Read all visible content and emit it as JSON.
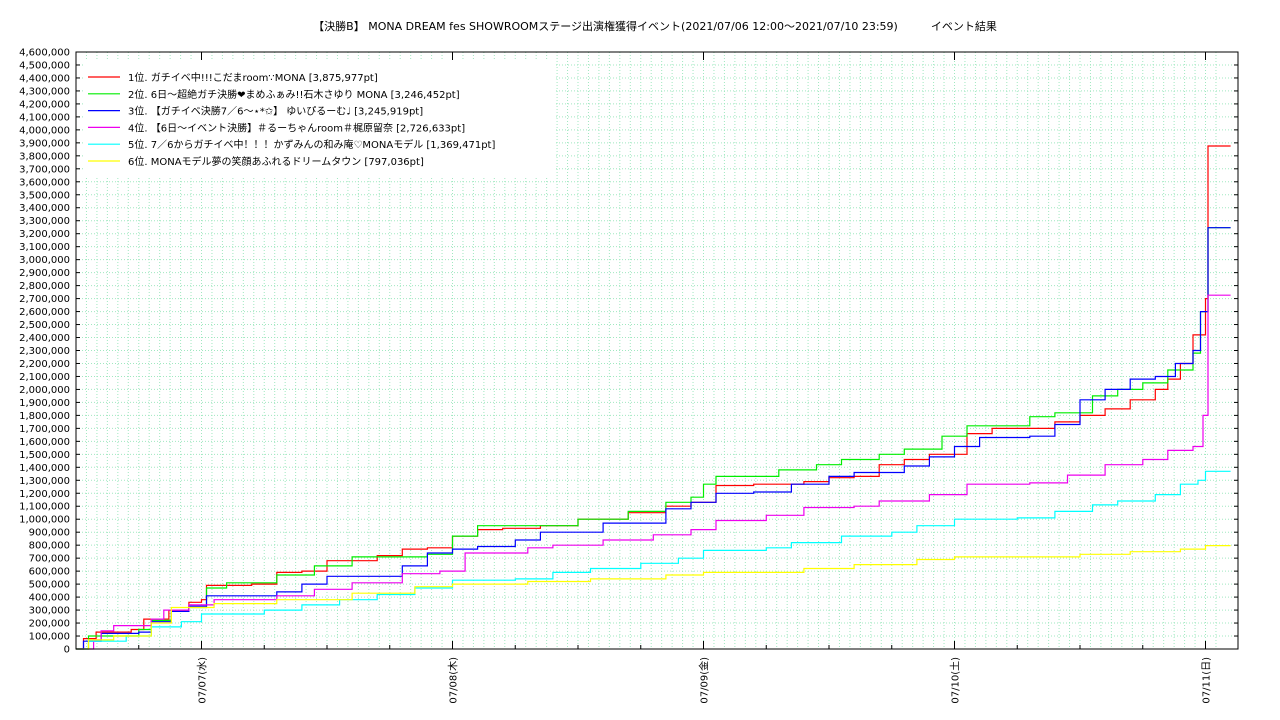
{
  "chart_data": {
    "type": "line",
    "title": "【決勝B】 MONA DREAM fes SHOWROOMステージ出演権獲得イベント(2021/07/06 12:00〜2021/07/10 23:59)　　　イベント結果",
    "xlabel": "",
    "ylabel": "",
    "x_unit": "day",
    "xlim": [
      0,
      4.5
    ],
    "ylim": [
      0,
      4600000
    ],
    "y_tick_step": 100000,
    "grid": true,
    "legend_position": "top-left",
    "x_ticks": [
      {
        "x": 0.5,
        "label": "07/07(水)"
      },
      {
        "x": 1.5,
        "label": "07/08(木)"
      },
      {
        "x": 2.5,
        "label": "07/09(金)"
      },
      {
        "x": 3.5,
        "label": "07/10(土)"
      },
      {
        "x": 4.5,
        "label": "07/11(日)"
      }
    ],
    "series": [
      {
        "name": "1位. ガチイベ中!!!こだまroom∵MONA [3,875,977pt]",
        "color": "#ff0000",
        "values": [
          [
            0,
            0
          ],
          [
            0.03,
            80000
          ],
          [
            0.08,
            130000
          ],
          [
            0.22,
            150000
          ],
          [
            0.27,
            230000
          ],
          [
            0.37,
            300000
          ],
          [
            0.45,
            360000
          ],
          [
            0.5,
            380000
          ],
          [
            0.52,
            490000
          ],
          [
            0.7,
            500000
          ],
          [
            0.8,
            590000
          ],
          [
            0.9,
            600000
          ],
          [
            1.0,
            680000
          ],
          [
            1.2,
            720000
          ],
          [
            1.3,
            770000
          ],
          [
            1.4,
            780000
          ],
          [
            1.5,
            870000
          ],
          [
            1.6,
            920000
          ],
          [
            1.7,
            930000
          ],
          [
            1.85,
            950000
          ],
          [
            2.0,
            1000000
          ],
          [
            2.2,
            1050000
          ],
          [
            2.35,
            1100000
          ],
          [
            2.45,
            1130000
          ],
          [
            2.55,
            1260000
          ],
          [
            2.7,
            1270000
          ],
          [
            2.9,
            1290000
          ],
          [
            3.0,
            1320000
          ],
          [
            3.1,
            1330000
          ],
          [
            3.2,
            1420000
          ],
          [
            3.3,
            1460000
          ],
          [
            3.4,
            1500000
          ],
          [
            3.55,
            1660000
          ],
          [
            3.65,
            1700000
          ],
          [
            3.8,
            1700000
          ],
          [
            3.9,
            1750000
          ],
          [
            4.0,
            1800000
          ],
          [
            4.1,
            1850000
          ],
          [
            4.2,
            1920000
          ],
          [
            4.3,
            2000000
          ],
          [
            4.35,
            2080000
          ],
          [
            4.4,
            2200000
          ],
          [
            4.45,
            2420000
          ],
          [
            4.5,
            2700000
          ],
          [
            4.51,
            3876000
          ],
          [
            4.6,
            3876000
          ]
        ]
      },
      {
        "name": "2位. 6日〜超絶ガチ決勝❤まめふぁみ!!石木さゆり MONA [3,246,452pt]",
        "color": "#00ee00",
        "values": [
          [
            0,
            0
          ],
          [
            0.05,
            100000
          ],
          [
            0.25,
            150000
          ],
          [
            0.3,
            220000
          ],
          [
            0.38,
            300000
          ],
          [
            0.45,
            320000
          ],
          [
            0.52,
            470000
          ],
          [
            0.6,
            510000
          ],
          [
            0.8,
            570000
          ],
          [
            0.95,
            640000
          ],
          [
            1.1,
            710000
          ],
          [
            1.25,
            710000
          ],
          [
            1.4,
            730000
          ],
          [
            1.5,
            870000
          ],
          [
            1.6,
            950000
          ],
          [
            1.9,
            950000
          ],
          [
            2.0,
            1000000
          ],
          [
            2.2,
            1060000
          ],
          [
            2.35,
            1130000
          ],
          [
            2.45,
            1170000
          ],
          [
            2.5,
            1270000
          ],
          [
            2.55,
            1330000
          ],
          [
            2.8,
            1380000
          ],
          [
            2.95,
            1420000
          ],
          [
            3.05,
            1460000
          ],
          [
            3.2,
            1500000
          ],
          [
            3.3,
            1540000
          ],
          [
            3.45,
            1640000
          ],
          [
            3.55,
            1720000
          ],
          [
            3.8,
            1790000
          ],
          [
            3.9,
            1820000
          ],
          [
            4.05,
            1950000
          ],
          [
            4.15,
            2000000
          ],
          [
            4.25,
            2050000
          ],
          [
            4.35,
            2150000
          ],
          [
            4.45,
            2280000
          ],
          [
            4.48,
            2600000
          ],
          [
            4.51,
            3246000
          ],
          [
            4.6,
            3246000
          ]
        ]
      },
      {
        "name": "3位. 【ガチイベ決勝7／6〜⋆*✩】 ゆいぴるーむ♩ [3,245,919pt]",
        "color": "#0000ff",
        "values": [
          [
            0,
            0
          ],
          [
            0.03,
            60000
          ],
          [
            0.1,
            120000
          ],
          [
            0.25,
            130000
          ],
          [
            0.3,
            210000
          ],
          [
            0.38,
            290000
          ],
          [
            0.45,
            330000
          ],
          [
            0.52,
            410000
          ],
          [
            0.8,
            440000
          ],
          [
            0.9,
            500000
          ],
          [
            1.0,
            560000
          ],
          [
            1.2,
            560000
          ],
          [
            1.3,
            640000
          ],
          [
            1.4,
            740000
          ],
          [
            1.5,
            770000
          ],
          [
            1.6,
            790000
          ],
          [
            1.75,
            840000
          ],
          [
            1.85,
            900000
          ],
          [
            2.1,
            970000
          ],
          [
            2.35,
            1080000
          ],
          [
            2.45,
            1130000
          ],
          [
            2.55,
            1200000
          ],
          [
            2.7,
            1210000
          ],
          [
            2.85,
            1270000
          ],
          [
            3.0,
            1330000
          ],
          [
            3.1,
            1360000
          ],
          [
            3.3,
            1410000
          ],
          [
            3.4,
            1480000
          ],
          [
            3.5,
            1560000
          ],
          [
            3.6,
            1630000
          ],
          [
            3.8,
            1640000
          ],
          [
            3.9,
            1730000
          ],
          [
            4.0,
            1920000
          ],
          [
            4.1,
            2000000
          ],
          [
            4.2,
            2080000
          ],
          [
            4.3,
            2100000
          ],
          [
            4.38,
            2200000
          ],
          [
            4.45,
            2300000
          ],
          [
            4.48,
            2600000
          ],
          [
            4.51,
            3246000
          ],
          [
            4.6,
            3246000
          ]
        ]
      },
      {
        "name": "4位. 【6日〜イベント決勝】＃るーちゃんroom＃梶原留奈 [2,726,633pt]",
        "color": "#ee00ee",
        "values": [
          [
            0,
            0
          ],
          [
            0.07,
            70000
          ],
          [
            0.1,
            140000
          ],
          [
            0.15,
            180000
          ],
          [
            0.3,
            230000
          ],
          [
            0.35,
            300000
          ],
          [
            0.45,
            340000
          ],
          [
            0.55,
            380000
          ],
          [
            0.8,
            410000
          ],
          [
            0.95,
            460000
          ],
          [
            1.1,
            510000
          ],
          [
            1.3,
            580000
          ],
          [
            1.45,
            600000
          ],
          [
            1.55,
            740000
          ],
          [
            1.8,
            780000
          ],
          [
            1.9,
            800000
          ],
          [
            2.1,
            840000
          ],
          [
            2.3,
            880000
          ],
          [
            2.45,
            920000
          ],
          [
            2.55,
            990000
          ],
          [
            2.75,
            1030000
          ],
          [
            2.9,
            1090000
          ],
          [
            3.1,
            1100000
          ],
          [
            3.2,
            1140000
          ],
          [
            3.4,
            1190000
          ],
          [
            3.55,
            1270000
          ],
          [
            3.8,
            1280000
          ],
          [
            3.95,
            1340000
          ],
          [
            4.1,
            1420000
          ],
          [
            4.25,
            1460000
          ],
          [
            4.35,
            1530000
          ],
          [
            4.45,
            1560000
          ],
          [
            4.49,
            1800000
          ],
          [
            4.51,
            2726000
          ],
          [
            4.6,
            2726000
          ]
        ]
      },
      {
        "name": "5位. 7／6からガチイベ中！！！かずみんの和み庵♡MONAモデル [1,369,471pt]",
        "color": "#00ffff",
        "values": [
          [
            0,
            0
          ],
          [
            0.05,
            60000
          ],
          [
            0.2,
            100000
          ],
          [
            0.3,
            170000
          ],
          [
            0.42,
            210000
          ],
          [
            0.5,
            270000
          ],
          [
            0.75,
            300000
          ],
          [
            0.9,
            340000
          ],
          [
            1.05,
            380000
          ],
          [
            1.2,
            420000
          ],
          [
            1.35,
            470000
          ],
          [
            1.5,
            530000
          ],
          [
            1.75,
            540000
          ],
          [
            1.9,
            590000
          ],
          [
            2.05,
            620000
          ],
          [
            2.25,
            660000
          ],
          [
            2.4,
            700000
          ],
          [
            2.5,
            760000
          ],
          [
            2.75,
            780000
          ],
          [
            2.85,
            820000
          ],
          [
            3.05,
            870000
          ],
          [
            3.25,
            900000
          ],
          [
            3.35,
            950000
          ],
          [
            3.5,
            1000000
          ],
          [
            3.75,
            1010000
          ],
          [
            3.9,
            1060000
          ],
          [
            4.05,
            1110000
          ],
          [
            4.15,
            1140000
          ],
          [
            4.3,
            1190000
          ],
          [
            4.4,
            1270000
          ],
          [
            4.47,
            1300000
          ],
          [
            4.5,
            1369000
          ],
          [
            4.6,
            1369000
          ]
        ]
      },
      {
        "name": "6位. MONAモデル夢の笑顔あふれるドリームタウン [797,036pt]",
        "color": "#ffff00",
        "values": [
          [
            0,
            0
          ],
          [
            0.05,
            70000
          ],
          [
            0.15,
            100000
          ],
          [
            0.3,
            200000
          ],
          [
            0.38,
            320000
          ],
          [
            0.55,
            350000
          ],
          [
            0.8,
            380000
          ],
          [
            1.1,
            430000
          ],
          [
            1.35,
            480000
          ],
          [
            1.5,
            500000
          ],
          [
            1.8,
            520000
          ],
          [
            2.05,
            540000
          ],
          [
            2.35,
            570000
          ],
          [
            2.5,
            590000
          ],
          [
            2.9,
            620000
          ],
          [
            3.1,
            650000
          ],
          [
            3.35,
            690000
          ],
          [
            3.5,
            710000
          ],
          [
            3.8,
            710000
          ],
          [
            4.0,
            730000
          ],
          [
            4.2,
            750000
          ],
          [
            4.4,
            770000
          ],
          [
            4.5,
            797000
          ],
          [
            4.6,
            797000
          ]
        ]
      }
    ]
  }
}
